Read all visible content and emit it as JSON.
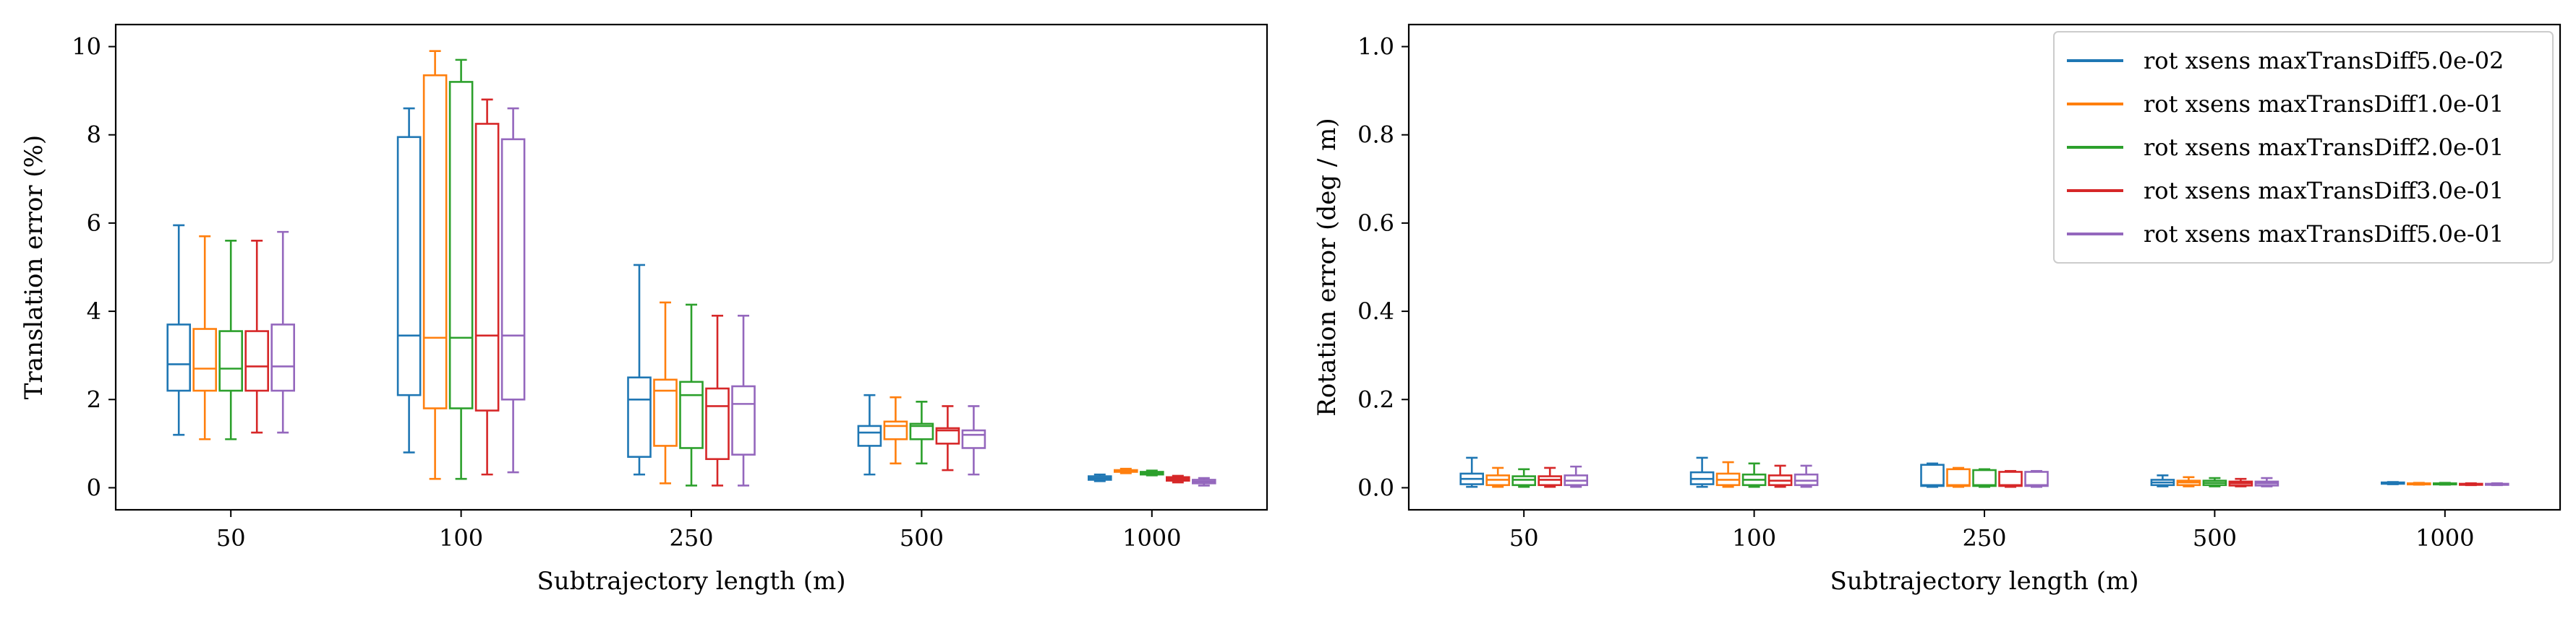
{
  "chart_data": [
    {
      "type": "box",
      "xlabel": "Subtrajectory length (m)",
      "ylabel": "Translation error (%)",
      "categories": [
        "50",
        "100",
        "250",
        "500",
        "1000"
      ],
      "ylim": [
        -0.5,
        10.5
      ],
      "yticks": [
        0,
        2,
        4,
        6,
        8,
        10
      ],
      "grid": false,
      "series": [
        {
          "color": "#1f77b4",
          "boxes": [
            {
              "whislo": 1.2,
              "q1": 2.2,
              "med": 2.8,
              "q3": 3.7,
              "whishi": 5.95
            },
            {
              "whislo": 0.8,
              "q1": 2.1,
              "med": 3.45,
              "q3": 7.95,
              "whishi": 8.6
            },
            {
              "whislo": 0.3,
              "q1": 0.7,
              "med": 2.0,
              "q3": 2.5,
              "whishi": 5.05
            },
            {
              "whislo": 0.3,
              "q1": 0.95,
              "med": 1.25,
              "q3": 1.4,
              "whishi": 2.1
            },
            {
              "whislo": 0.15,
              "q1": 0.18,
              "med": 0.22,
              "q3": 0.26,
              "whishi": 0.3
            }
          ]
        },
        {
          "color": "#ff7f0e",
          "boxes": [
            {
              "whislo": 1.1,
              "q1": 2.2,
              "med": 2.7,
              "q3": 3.6,
              "whishi": 5.7
            },
            {
              "whislo": 0.2,
              "q1": 1.8,
              "med": 3.4,
              "q3": 9.35,
              "whishi": 9.9
            },
            {
              "whislo": 0.1,
              "q1": 0.95,
              "med": 2.2,
              "q3": 2.45,
              "whishi": 4.2
            },
            {
              "whislo": 0.55,
              "q1": 1.1,
              "med": 1.4,
              "q3": 1.5,
              "whishi": 2.05
            },
            {
              "whislo": 0.33,
              "q1": 0.36,
              "med": 0.38,
              "q3": 0.4,
              "whishi": 0.43
            }
          ]
        },
        {
          "color": "#2ca02c",
          "boxes": [
            {
              "whislo": 1.1,
              "q1": 2.2,
              "med": 2.7,
              "q3": 3.55,
              "whishi": 5.6
            },
            {
              "whislo": 0.2,
              "q1": 1.8,
              "med": 3.4,
              "q3": 9.2,
              "whishi": 9.7
            },
            {
              "whislo": 0.05,
              "q1": 0.9,
              "med": 2.1,
              "q3": 2.4,
              "whishi": 4.15
            },
            {
              "whislo": 0.55,
              "q1": 1.1,
              "med": 1.4,
              "q3": 1.45,
              "whishi": 1.95
            },
            {
              "whislo": 0.28,
              "q1": 0.3,
              "med": 0.33,
              "q3": 0.36,
              "whishi": 0.39
            }
          ]
        },
        {
          "color": "#d62728",
          "boxes": [
            {
              "whislo": 1.25,
              "q1": 2.2,
              "med": 2.75,
              "q3": 3.55,
              "whishi": 5.6
            },
            {
              "whislo": 0.3,
              "q1": 1.75,
              "med": 3.45,
              "q3": 8.25,
              "whishi": 8.8
            },
            {
              "whislo": 0.05,
              "q1": 0.65,
              "med": 1.85,
              "q3": 2.25,
              "whishi": 3.9
            },
            {
              "whislo": 0.4,
              "q1": 1.0,
              "med": 1.3,
              "q3": 1.35,
              "whishi": 1.85
            },
            {
              "whislo": 0.12,
              "q1": 0.16,
              "med": 0.2,
              "q3": 0.24,
              "whishi": 0.27
            }
          ]
        },
        {
          "color": "#9467bd",
          "boxes": [
            {
              "whislo": 1.25,
              "q1": 2.2,
              "med": 2.75,
              "q3": 3.7,
              "whishi": 5.8
            },
            {
              "whislo": 0.35,
              "q1": 2.0,
              "med": 3.45,
              "q3": 7.9,
              "whishi": 8.6
            },
            {
              "whislo": 0.05,
              "q1": 0.75,
              "med": 1.9,
              "q3": 2.3,
              "whishi": 3.9
            },
            {
              "whislo": 0.3,
              "q1": 0.9,
              "med": 1.2,
              "q3": 1.3,
              "whishi": 1.85
            },
            {
              "whislo": 0.05,
              "q1": 0.1,
              "med": 0.14,
              "q3": 0.18,
              "whishi": 0.22
            }
          ]
        }
      ]
    },
    {
      "type": "box",
      "xlabel": "Subtrajectory length (m)",
      "ylabel": "Rotation error (deg / m)",
      "categories": [
        "50",
        "100",
        "250",
        "500",
        "1000"
      ],
      "ylim": [
        -0.05,
        1.05
      ],
      "yticks": [
        0.0,
        0.2,
        0.4,
        0.6,
        0.8,
        1.0
      ],
      "ytick_labels": [
        "0.0",
        "0.2",
        "0.4",
        "0.6",
        "0.8",
        "1.0"
      ],
      "grid": false,
      "legend": {
        "position": "top-right",
        "entries": [
          "rot xsens maxTransDiff5.0e-02",
          "rot xsens maxTransDiff1.0e-01",
          "rot xsens maxTransDiff2.0e-01",
          "rot xsens maxTransDiff3.0e-01",
          "rot xsens maxTransDiff5.0e-01"
        ]
      },
      "series": [
        {
          "color": "#1f77b4",
          "boxes": [
            {
              "whislo": 0.002,
              "q1": 0.008,
              "med": 0.02,
              "q3": 0.032,
              "whishi": 0.068
            },
            {
              "whislo": 0.002,
              "q1": 0.008,
              "med": 0.02,
              "q3": 0.035,
              "whishi": 0.068
            },
            {
              "whislo": 0.002,
              "q1": 0.004,
              "med": 0.006,
              "q3": 0.052,
              "whishi": 0.055
            },
            {
              "whislo": 0.003,
              "q1": 0.006,
              "med": 0.012,
              "q3": 0.018,
              "whishi": 0.028
            },
            {
              "whislo": 0.008,
              "q1": 0.009,
              "med": 0.01,
              "q3": 0.012,
              "whishi": 0.013
            }
          ]
        },
        {
          "color": "#ff7f0e",
          "boxes": [
            {
              "whislo": 0.002,
              "q1": 0.006,
              "med": 0.018,
              "q3": 0.028,
              "whishi": 0.045
            },
            {
              "whislo": 0.002,
              "q1": 0.006,
              "med": 0.018,
              "q3": 0.032,
              "whishi": 0.058
            },
            {
              "whislo": 0.002,
              "q1": 0.004,
              "med": 0.006,
              "q3": 0.042,
              "whishi": 0.045
            },
            {
              "whislo": 0.003,
              "q1": 0.006,
              "med": 0.012,
              "q3": 0.016,
              "whishi": 0.024
            },
            {
              "whislo": 0.007,
              "q1": 0.008,
              "med": 0.009,
              "q3": 0.01,
              "whishi": 0.011
            }
          ]
        },
        {
          "color": "#2ca02c",
          "boxes": [
            {
              "whislo": 0.002,
              "q1": 0.006,
              "med": 0.018,
              "q3": 0.026,
              "whishi": 0.042
            },
            {
              "whislo": 0.002,
              "q1": 0.006,
              "med": 0.018,
              "q3": 0.03,
              "whishi": 0.055
            },
            {
              "whislo": 0.002,
              "q1": 0.004,
              "med": 0.006,
              "q3": 0.04,
              "whishi": 0.042
            },
            {
              "whislo": 0.003,
              "q1": 0.006,
              "med": 0.011,
              "q3": 0.016,
              "whishi": 0.022
            },
            {
              "whislo": 0.007,
              "q1": 0.008,
              "med": 0.009,
              "q3": 0.01,
              "whishi": 0.011
            }
          ]
        },
        {
          "color": "#d62728",
          "boxes": [
            {
              "whislo": 0.002,
              "q1": 0.006,
              "med": 0.018,
              "q3": 0.026,
              "whishi": 0.045
            },
            {
              "whislo": 0.002,
              "q1": 0.006,
              "med": 0.016,
              "q3": 0.028,
              "whishi": 0.05
            },
            {
              "whislo": 0.002,
              "q1": 0.004,
              "med": 0.006,
              "q3": 0.036,
              "whishi": 0.038
            },
            {
              "whislo": 0.003,
              "q1": 0.005,
              "med": 0.01,
              "q3": 0.014,
              "whishi": 0.02
            },
            {
              "whislo": 0.006,
              "q1": 0.007,
              "med": 0.008,
              "q3": 0.009,
              "whishi": 0.01
            }
          ]
        },
        {
          "color": "#9467bd",
          "boxes": [
            {
              "whislo": 0.002,
              "q1": 0.006,
              "med": 0.016,
              "q3": 0.028,
              "whishi": 0.048
            },
            {
              "whislo": 0.002,
              "q1": 0.006,
              "med": 0.016,
              "q3": 0.03,
              "whishi": 0.05
            },
            {
              "whislo": 0.002,
              "q1": 0.004,
              "med": 0.006,
              "q3": 0.036,
              "whishi": 0.038
            },
            {
              "whislo": 0.003,
              "q1": 0.005,
              "med": 0.01,
              "q3": 0.014,
              "whishi": 0.022
            },
            {
              "whislo": 0.006,
              "q1": 0.007,
              "med": 0.008,
              "q3": 0.009,
              "whishi": 0.01
            }
          ]
        }
      ]
    }
  ]
}
